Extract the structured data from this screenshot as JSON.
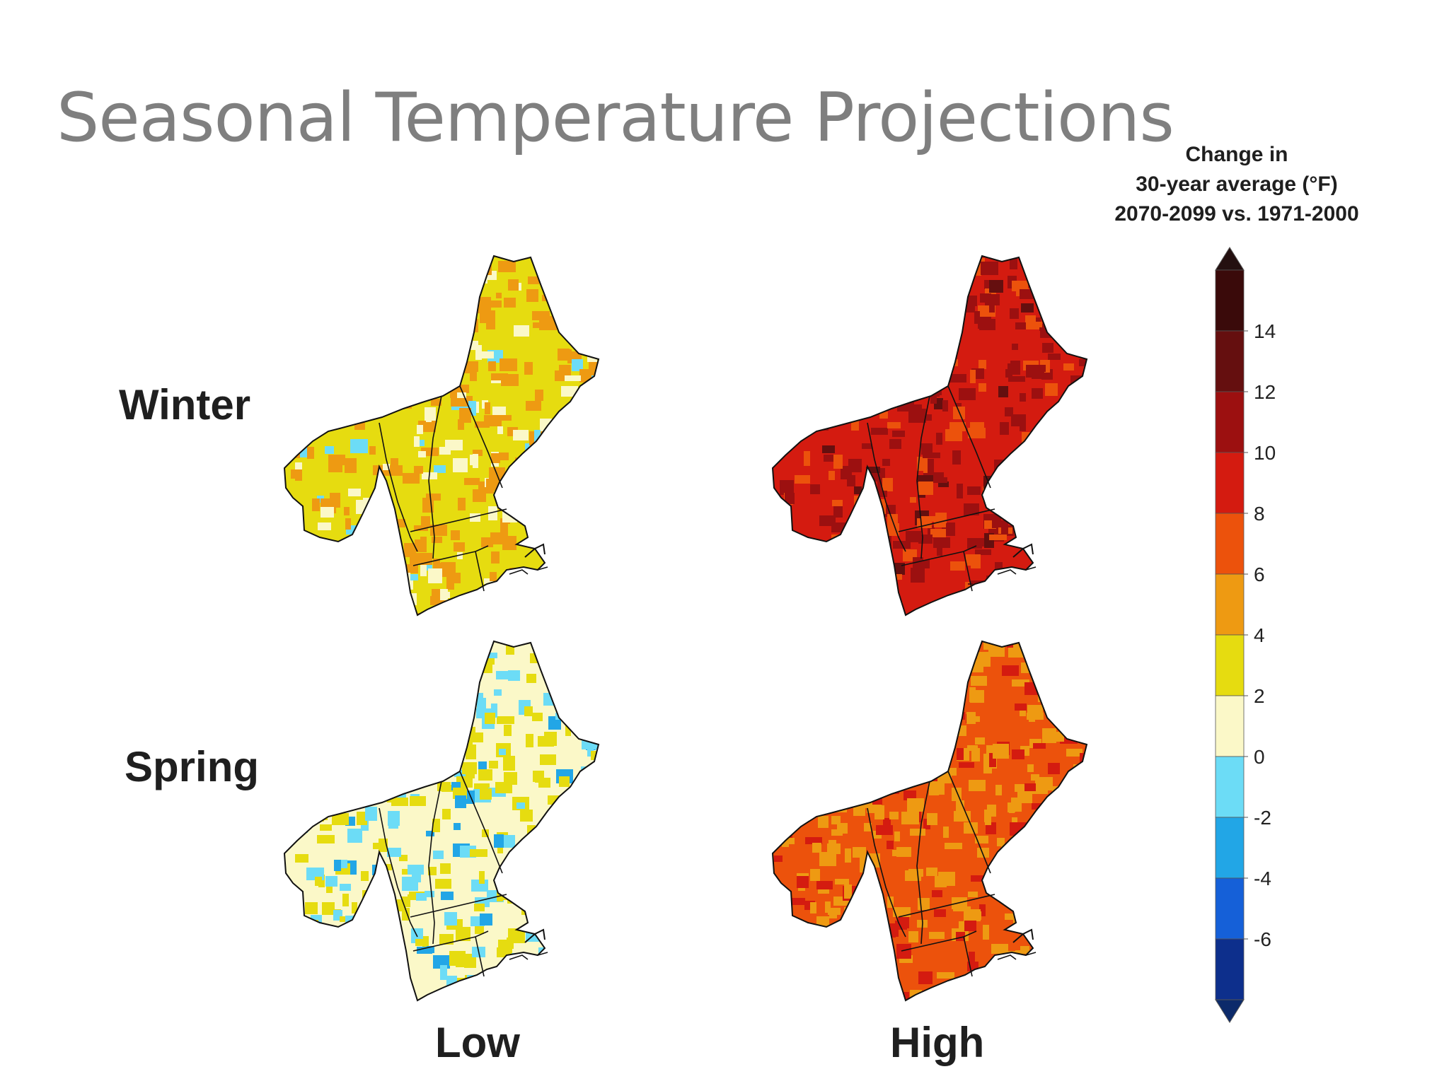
{
  "title": "Seasonal Temperature Projections",
  "row_labels": [
    "Winter",
    "Spring"
  ],
  "column_labels": [
    "Low",
    "High"
  ],
  "legend": {
    "title_lines": [
      "Change in",
      "30-year average (°F)",
      "2070-2099 vs. 1971-2000"
    ],
    "ticks": [
      "14",
      "12",
      "10",
      "8",
      "6",
      "4",
      "2",
      "0",
      "-2",
      "-4",
      "-6"
    ],
    "bins": [
      {
        "range": [
          14,
          16
        ],
        "color": "#3a0a0a"
      },
      {
        "range": [
          12,
          14
        ],
        "color": "#650f0f"
      },
      {
        "range": [
          10,
          12
        ],
        "color": "#9c1010"
      },
      {
        "range": [
          8,
          10
        ],
        "color": "#d41b10"
      },
      {
        "range": [
          6,
          8
        ],
        "color": "#ec520c"
      },
      {
        "range": [
          4,
          6
        ],
        "color": "#ee9a12"
      },
      {
        "range": [
          2,
          4
        ],
        "color": "#e6dc10"
      },
      {
        "range": [
          0,
          2
        ],
        "color": "#fbf8c8"
      },
      {
        "range": [
          -2,
          0
        ],
        "color": "#6cdcf6"
      },
      {
        "range": [
          -4,
          -2
        ],
        "color": "#22a6e6"
      },
      {
        "range": [
          -6,
          -4
        ],
        "color": "#1560d8"
      },
      {
        "range": [
          -8,
          -6
        ],
        "color": "#0d2f8c"
      }
    ],
    "upper_arrow_color": "#241010",
    "lower_arrow_color": "#0c2a6a"
  },
  "maps": [
    {
      "season": "Winter",
      "scenario": "Low",
      "base_color": "#e6dc10",
      "patch_colors": [
        "#ee9a12",
        "#fbf8c8",
        "#6cdcf6"
      ],
      "dominant_change_range": [
        2,
        6
      ]
    },
    {
      "season": "Winter",
      "scenario": "High",
      "base_color": "#d41b10",
      "patch_colors": [
        "#9c1010",
        "#ec520c",
        "#650f0f"
      ],
      "dominant_change_range": [
        6,
        12
      ]
    },
    {
      "season": "Spring",
      "scenario": "Low",
      "base_color": "#fbf8c8",
      "patch_colors": [
        "#e6dc10",
        "#6cdcf6",
        "#22a6e6"
      ],
      "dominant_change_range": [
        0,
        4
      ]
    },
    {
      "season": "Spring",
      "scenario": "High",
      "base_color": "#ec520c",
      "patch_colors": [
        "#ee9a12",
        "#d41b10"
      ],
      "dominant_change_range": [
        4,
        10
      ]
    }
  ]
}
